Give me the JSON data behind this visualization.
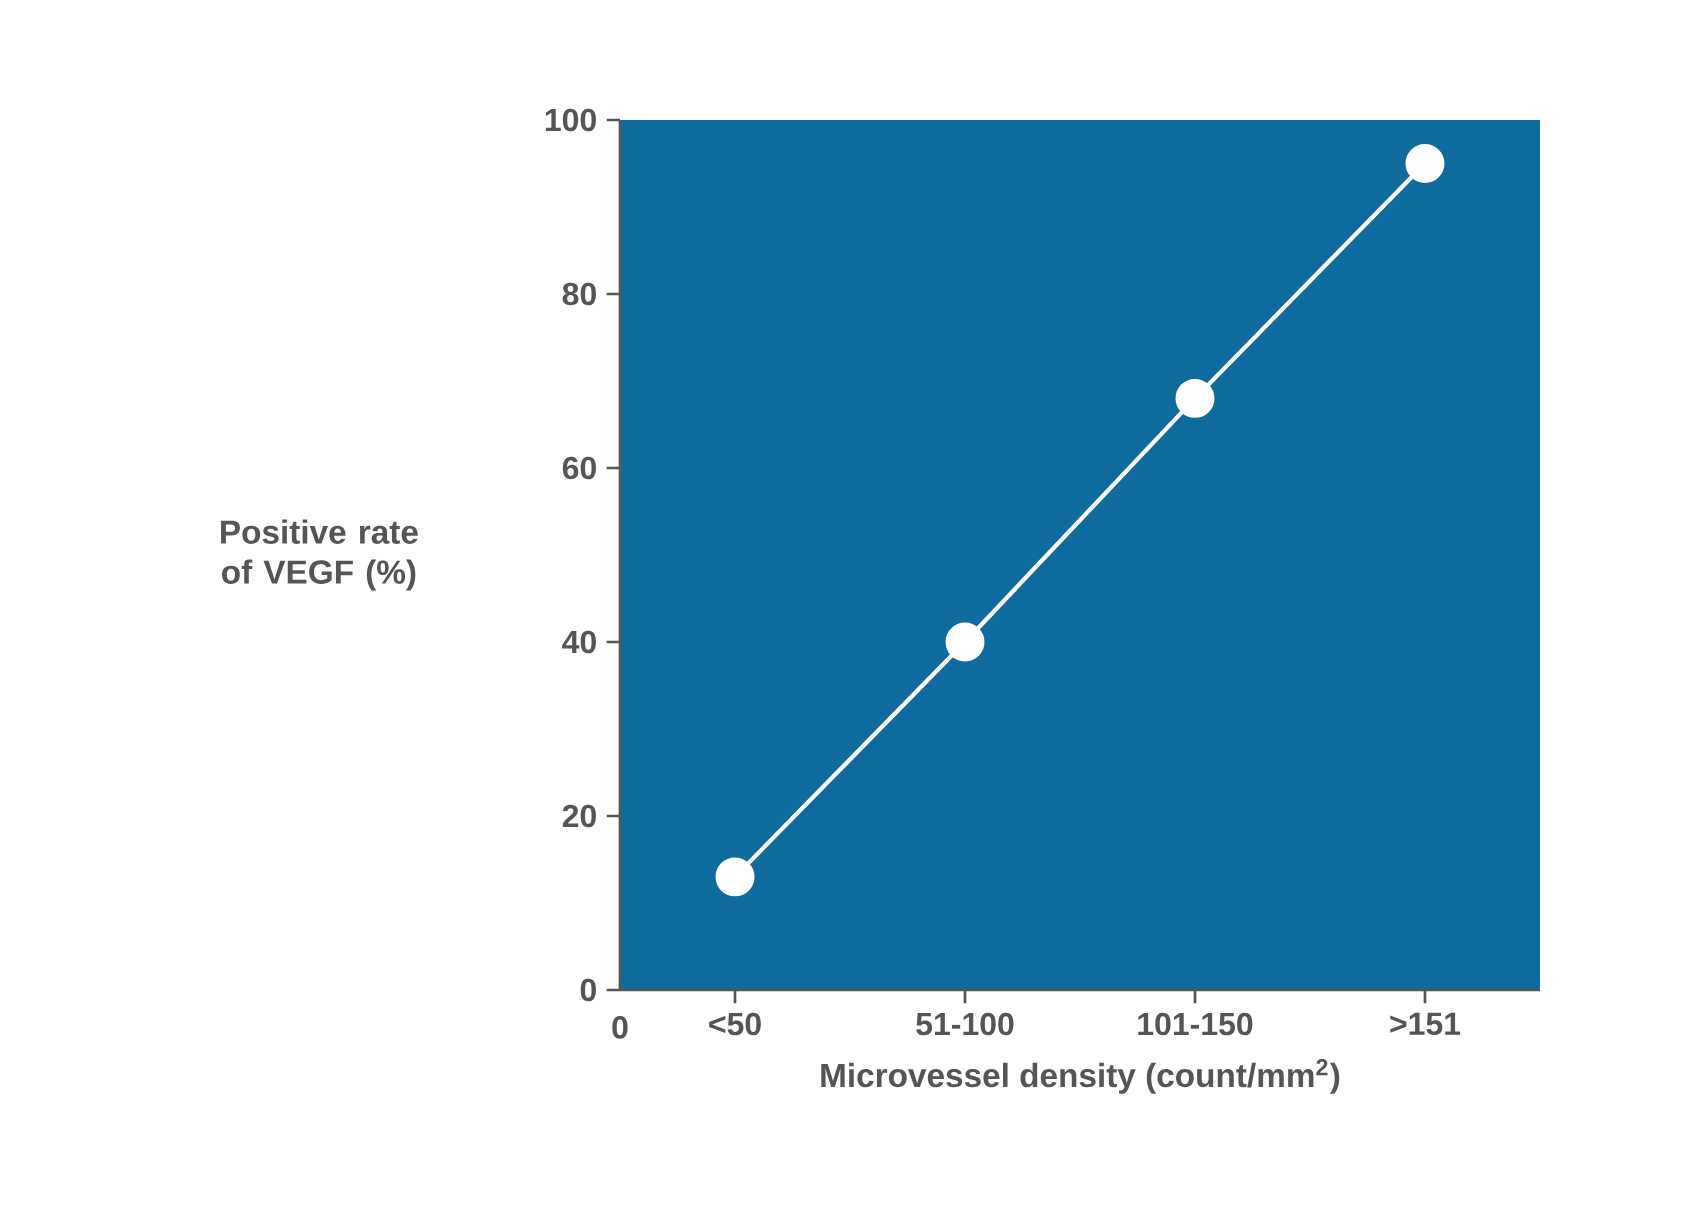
{
  "chart_data": {
    "type": "line",
    "xlabel": "Microvessel density (count/mm$^{2}$)",
    "ylabel": "Positive rate of VEGF (%)",
    "categories": [
      "<50",
      "51-100",
      "101-150",
      ">151"
    ],
    "annotations": [
      "0"
    ],
    "series": [
      {
        "color": "#ffffff",
        "values": [
          13,
          40,
          68,
          95
        ]
      }
    ],
    "ylim": [
      0,
      100
    ],
    "yticks": [
      0,
      20,
      40,
      60,
      80,
      100
    ],
    "marker": "circle",
    "line_style": "solid",
    "grid": false,
    "legend": false
  }
}
